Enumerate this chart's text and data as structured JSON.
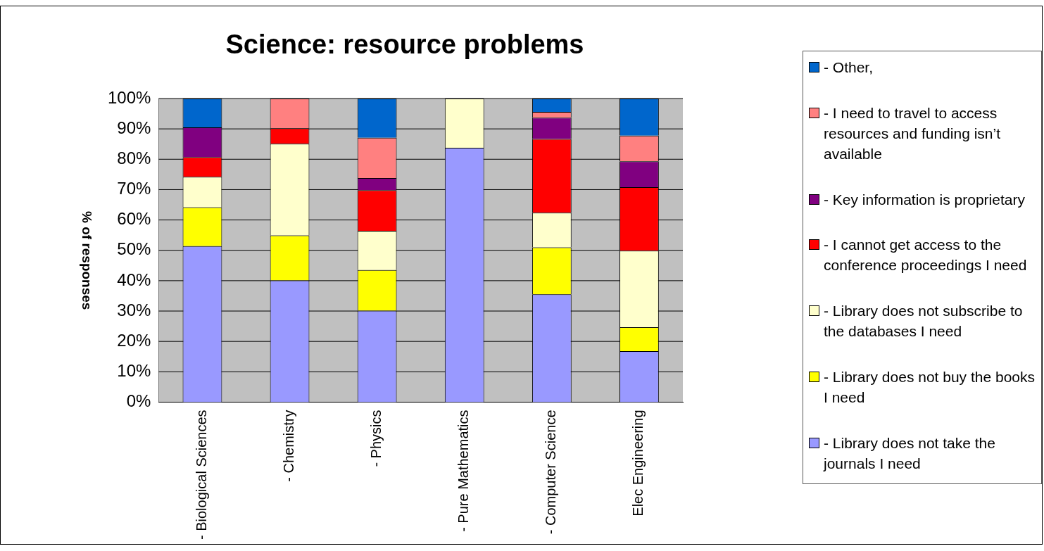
{
  "chart_data": {
    "type": "bar",
    "title": "Science: resource problems",
    "ylabel": "% of responses",
    "categories": [
      "- Biological Sciences",
      "- Chemistry",
      "- Physics",
      "- Pure Mathematics",
      "- Computer Science",
      "Elec Engineering"
    ],
    "stacked": true,
    "ylim": [
      0,
      100
    ],
    "yticks": [
      {
        "value": 0,
        "label": "0%"
      },
      {
        "value": 10,
        "label": "10%"
      },
      {
        "value": 20,
        "label": "20%"
      },
      {
        "value": 30,
        "label": "30%"
      },
      {
        "value": 40,
        "label": "40%"
      },
      {
        "value": 50,
        "label": "50%"
      },
      {
        "value": 60,
        "label": "60%"
      },
      {
        "value": 70,
        "label": "70%"
      },
      {
        "value": 80,
        "label": "80%"
      },
      {
        "value": 90,
        "label": "90%"
      },
      {
        "value": 100,
        "label": "100%"
      }
    ],
    "grid": "y",
    "legend": "right",
    "series": [
      {
        "name": "- Library does not take the journals I need",
        "color": "#9999ff",
        "values": [
          51.4,
          40.1,
          30.1,
          83.8,
          35.5,
          16.8
        ]
      },
      {
        "name": "- Library does not buy the books I need",
        "color": "#ffff00",
        "values": [
          12.8,
          14.8,
          13.4,
          0,
          15.5,
          7.9
        ]
      },
      {
        "name": "- Library does not subscribe to the databases I need",
        "color": "#ffffcc",
        "values": [
          10.0,
          30.2,
          12.9,
          16.2,
          11.4,
          25.2
        ]
      },
      {
        "name": "- I cannot get access to the conference proceedings I need",
        "color": "#ff0000",
        "values": [
          6.5,
          5.1,
          13.4,
          0,
          24.3,
          20.9
        ]
      },
      {
        "name": "- Key information is proprietary",
        "color": "#800080",
        "values": [
          9.8,
          0,
          4.0,
          0,
          7.0,
          8.5
        ]
      },
      {
        "name": "- I need to travel to access resources and funding isn’t available",
        "color": "#ff8080",
        "values": [
          0,
          9.8,
          13.3,
          0,
          1.9,
          8.5
        ]
      },
      {
        "name": "- Other,",
        "color": "#0066cc",
        "values": [
          9.5,
          0,
          12.9,
          0,
          4.4,
          12.2
        ]
      }
    ]
  }
}
